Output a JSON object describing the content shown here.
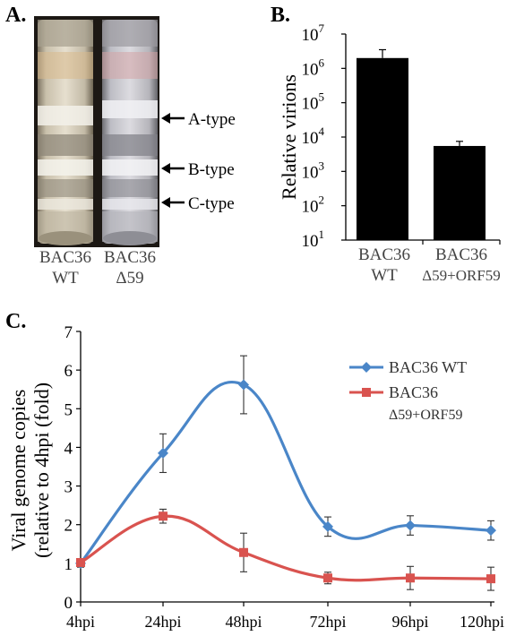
{
  "panel_a": {
    "label": "A.",
    "tubes": [
      {
        "name_line1": "BAC36",
        "name_line2": "WT"
      },
      {
        "name_line1": "BAC36",
        "name_line2": "Δ59"
      }
    ],
    "bands": [
      {
        "label": "A-type",
        "arrow": "left-arrow"
      },
      {
        "label": "B-type",
        "arrow": "left-arrow"
      },
      {
        "label": "C-type",
        "arrow": "left-arrow"
      }
    ]
  },
  "chart_data": [
    {
      "panel_label": "B.",
      "type": "bar",
      "ylabel": "Relative virions",
      "yscale": "log",
      "ylim": [
        10,
        10000000
      ],
      "yticks": [
        {
          "base": "10",
          "exp": "1"
        },
        {
          "base": "10",
          "exp": "2"
        },
        {
          "base": "10",
          "exp": "3"
        },
        {
          "base": "10",
          "exp": "4"
        },
        {
          "base": "10",
          "exp": "5"
        },
        {
          "base": "10",
          "exp": "6"
        },
        {
          "base": "10",
          "exp": "7"
        }
      ],
      "categories": [
        {
          "line1": "BAC36",
          "line2": "WT"
        },
        {
          "line1": "BAC36",
          "line2": "Δ59+ORF59"
        }
      ],
      "values": [
        2000000,
        5500
      ],
      "error_upper": [
        3500000,
        7500
      ],
      "bar_color": "#000000"
    },
    {
      "panel_label": "C.",
      "type": "line",
      "ylabel_line1": "Viral genome copies",
      "ylabel_line2": "(relative to 4hpi (fold)",
      "ylim": [
        0,
        7
      ],
      "yticks": [
        "0",
        "1",
        "2",
        "3",
        "4",
        "5",
        "6",
        "7"
      ],
      "categories": [
        "4hpi",
        "24hpi",
        "48hpi",
        "72hpi",
        "96hpi",
        "120hpi"
      ],
      "legend_position": "top-right",
      "series": [
        {
          "name": "BAC36 WT",
          "color": "#4a86c8",
          "marker": "diamond",
          "values": [
            1.0,
            3.85,
            5.62,
            1.95,
            1.98,
            1.85
          ],
          "errors": [
            0.1,
            0.5,
            0.75,
            0.25,
            0.25,
            0.25
          ]
        },
        {
          "name_line1": "BAC36",
          "name_line2": "Δ59+ORF59",
          "color": "#d9534f",
          "marker": "square",
          "values": [
            1.02,
            2.22,
            1.28,
            0.62,
            0.62,
            0.6
          ],
          "errors": [
            0.1,
            0.18,
            0.5,
            0.15,
            0.3,
            0.3
          ]
        }
      ]
    }
  ]
}
